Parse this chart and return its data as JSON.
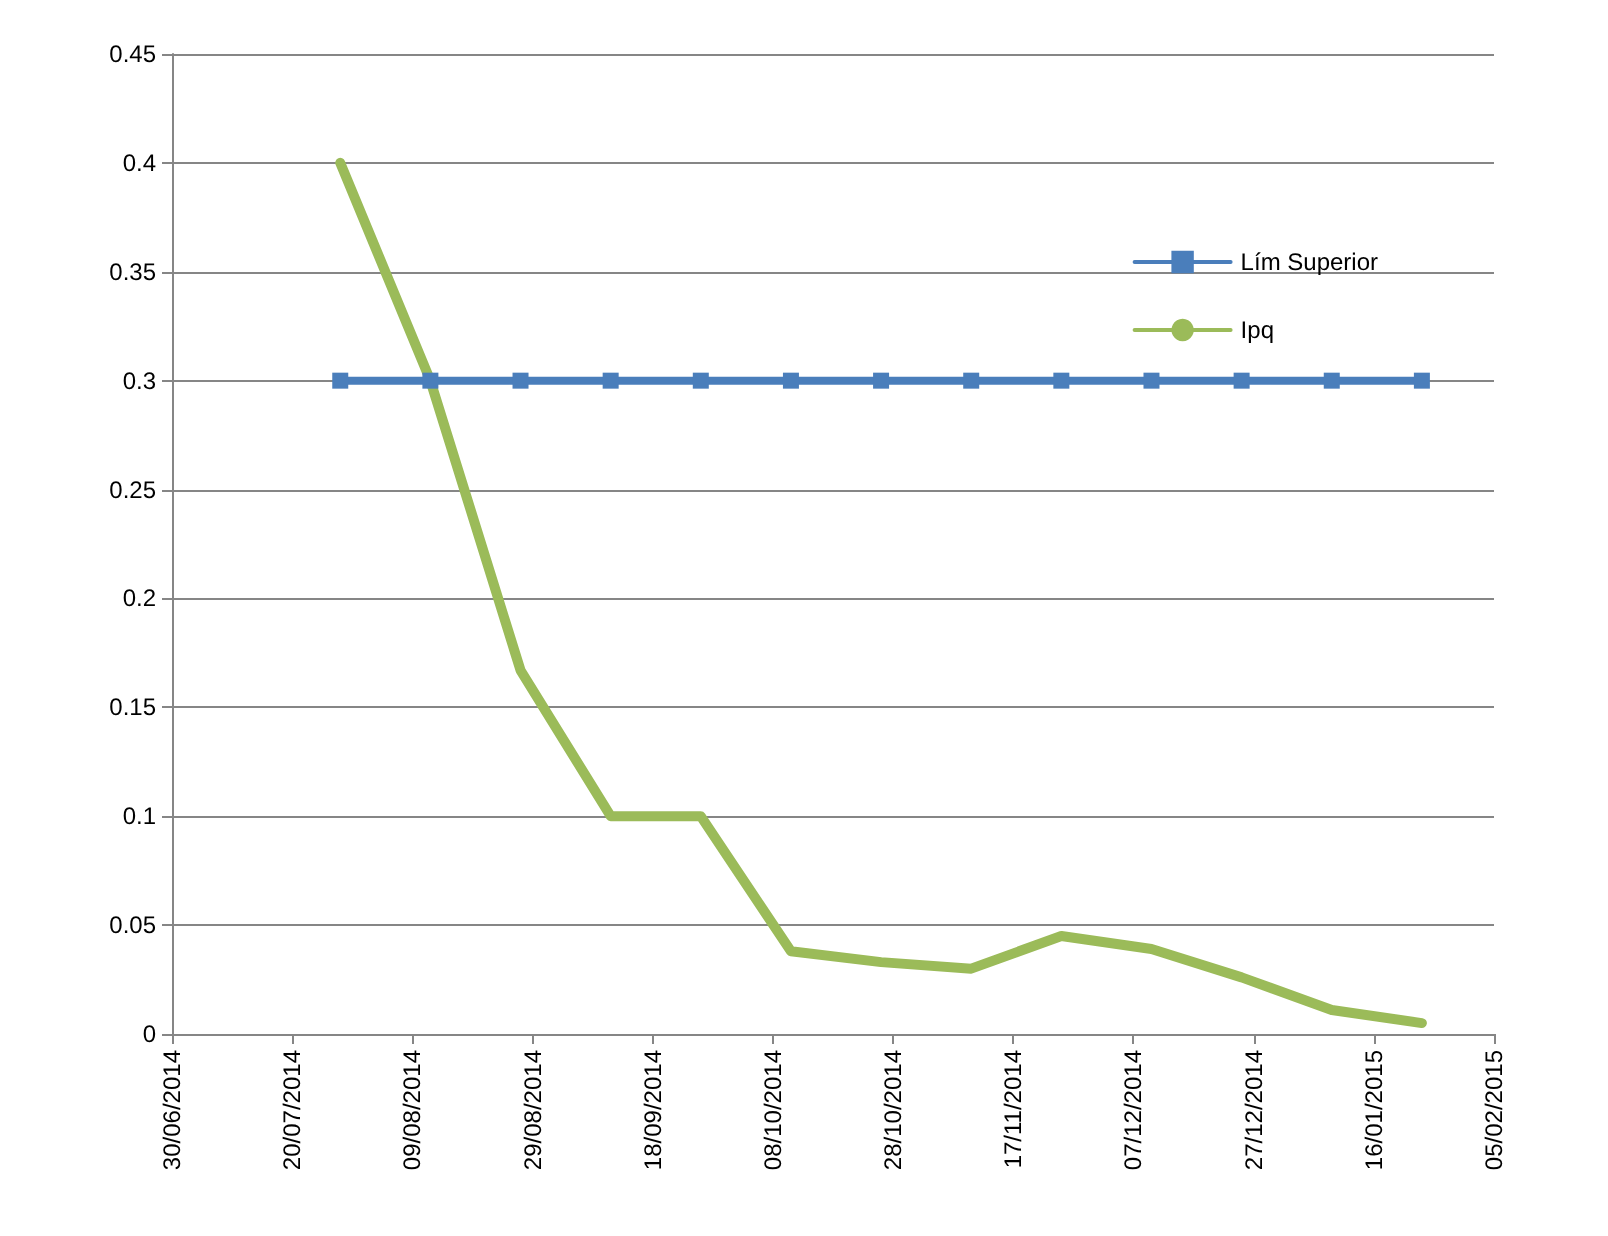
{
  "chart_data": {
    "type": "line",
    "x": [
      "2014-07-28",
      "2014-08-12",
      "2014-08-27",
      "2014-09-11",
      "2014-09-26",
      "2014-10-11",
      "2014-10-26",
      "2014-11-10",
      "2014-11-25",
      "2014-12-10",
      "2014-12-25",
      "2015-01-09",
      "2015-01-24"
    ],
    "series": [
      {
        "name": "Lím Superior",
        "color": "#4a7ebb",
        "marker": "square",
        "values": [
          0.3,
          0.3,
          0.3,
          0.3,
          0.3,
          0.3,
          0.3,
          0.3,
          0.3,
          0.3,
          0.3,
          0.3,
          0.3
        ]
      },
      {
        "name": "Ipq",
        "color": "#9bbb59",
        "marker": "none",
        "values": [
          0.4,
          0.3,
          0.167,
          0.1,
          0.1,
          0.038,
          0.033,
          0.03,
          0.045,
          0.039,
          0.026,
          0.011,
          0.005
        ]
      }
    ],
    "xlim": [
      "2014-06-30",
      "2015-02-05"
    ],
    "xticks": [
      {
        "value": "2014-06-30",
        "label": "30/06/2014"
      },
      {
        "value": "2014-07-20",
        "label": "20/07/2014"
      },
      {
        "value": "2014-08-09",
        "label": "09/08/2014"
      },
      {
        "value": "2014-08-29",
        "label": "29/08/2014"
      },
      {
        "value": "2014-09-18",
        "label": "18/09/2014"
      },
      {
        "value": "2014-10-08",
        "label": "08/10/2014"
      },
      {
        "value": "2014-10-28",
        "label": "28/10/2014"
      },
      {
        "value": "2014-11-17",
        "label": "17/11/2014"
      },
      {
        "value": "2014-12-07",
        "label": "07/12/2014"
      },
      {
        "value": "2014-12-27",
        "label": "27/12/2014"
      },
      {
        "value": "2015-01-16",
        "label": "16/01/2015"
      },
      {
        "value": "2015-02-05",
        "label": "05/02/2015"
      }
    ],
    "ylim": [
      0,
      0.45
    ],
    "yticks": [
      0,
      0.05,
      0.1,
      0.15,
      0.2,
      0.25,
      0.3,
      0.35,
      0.4,
      0.45
    ],
    "grid": "y",
    "legend": "top right",
    "line_style": "solid"
  }
}
